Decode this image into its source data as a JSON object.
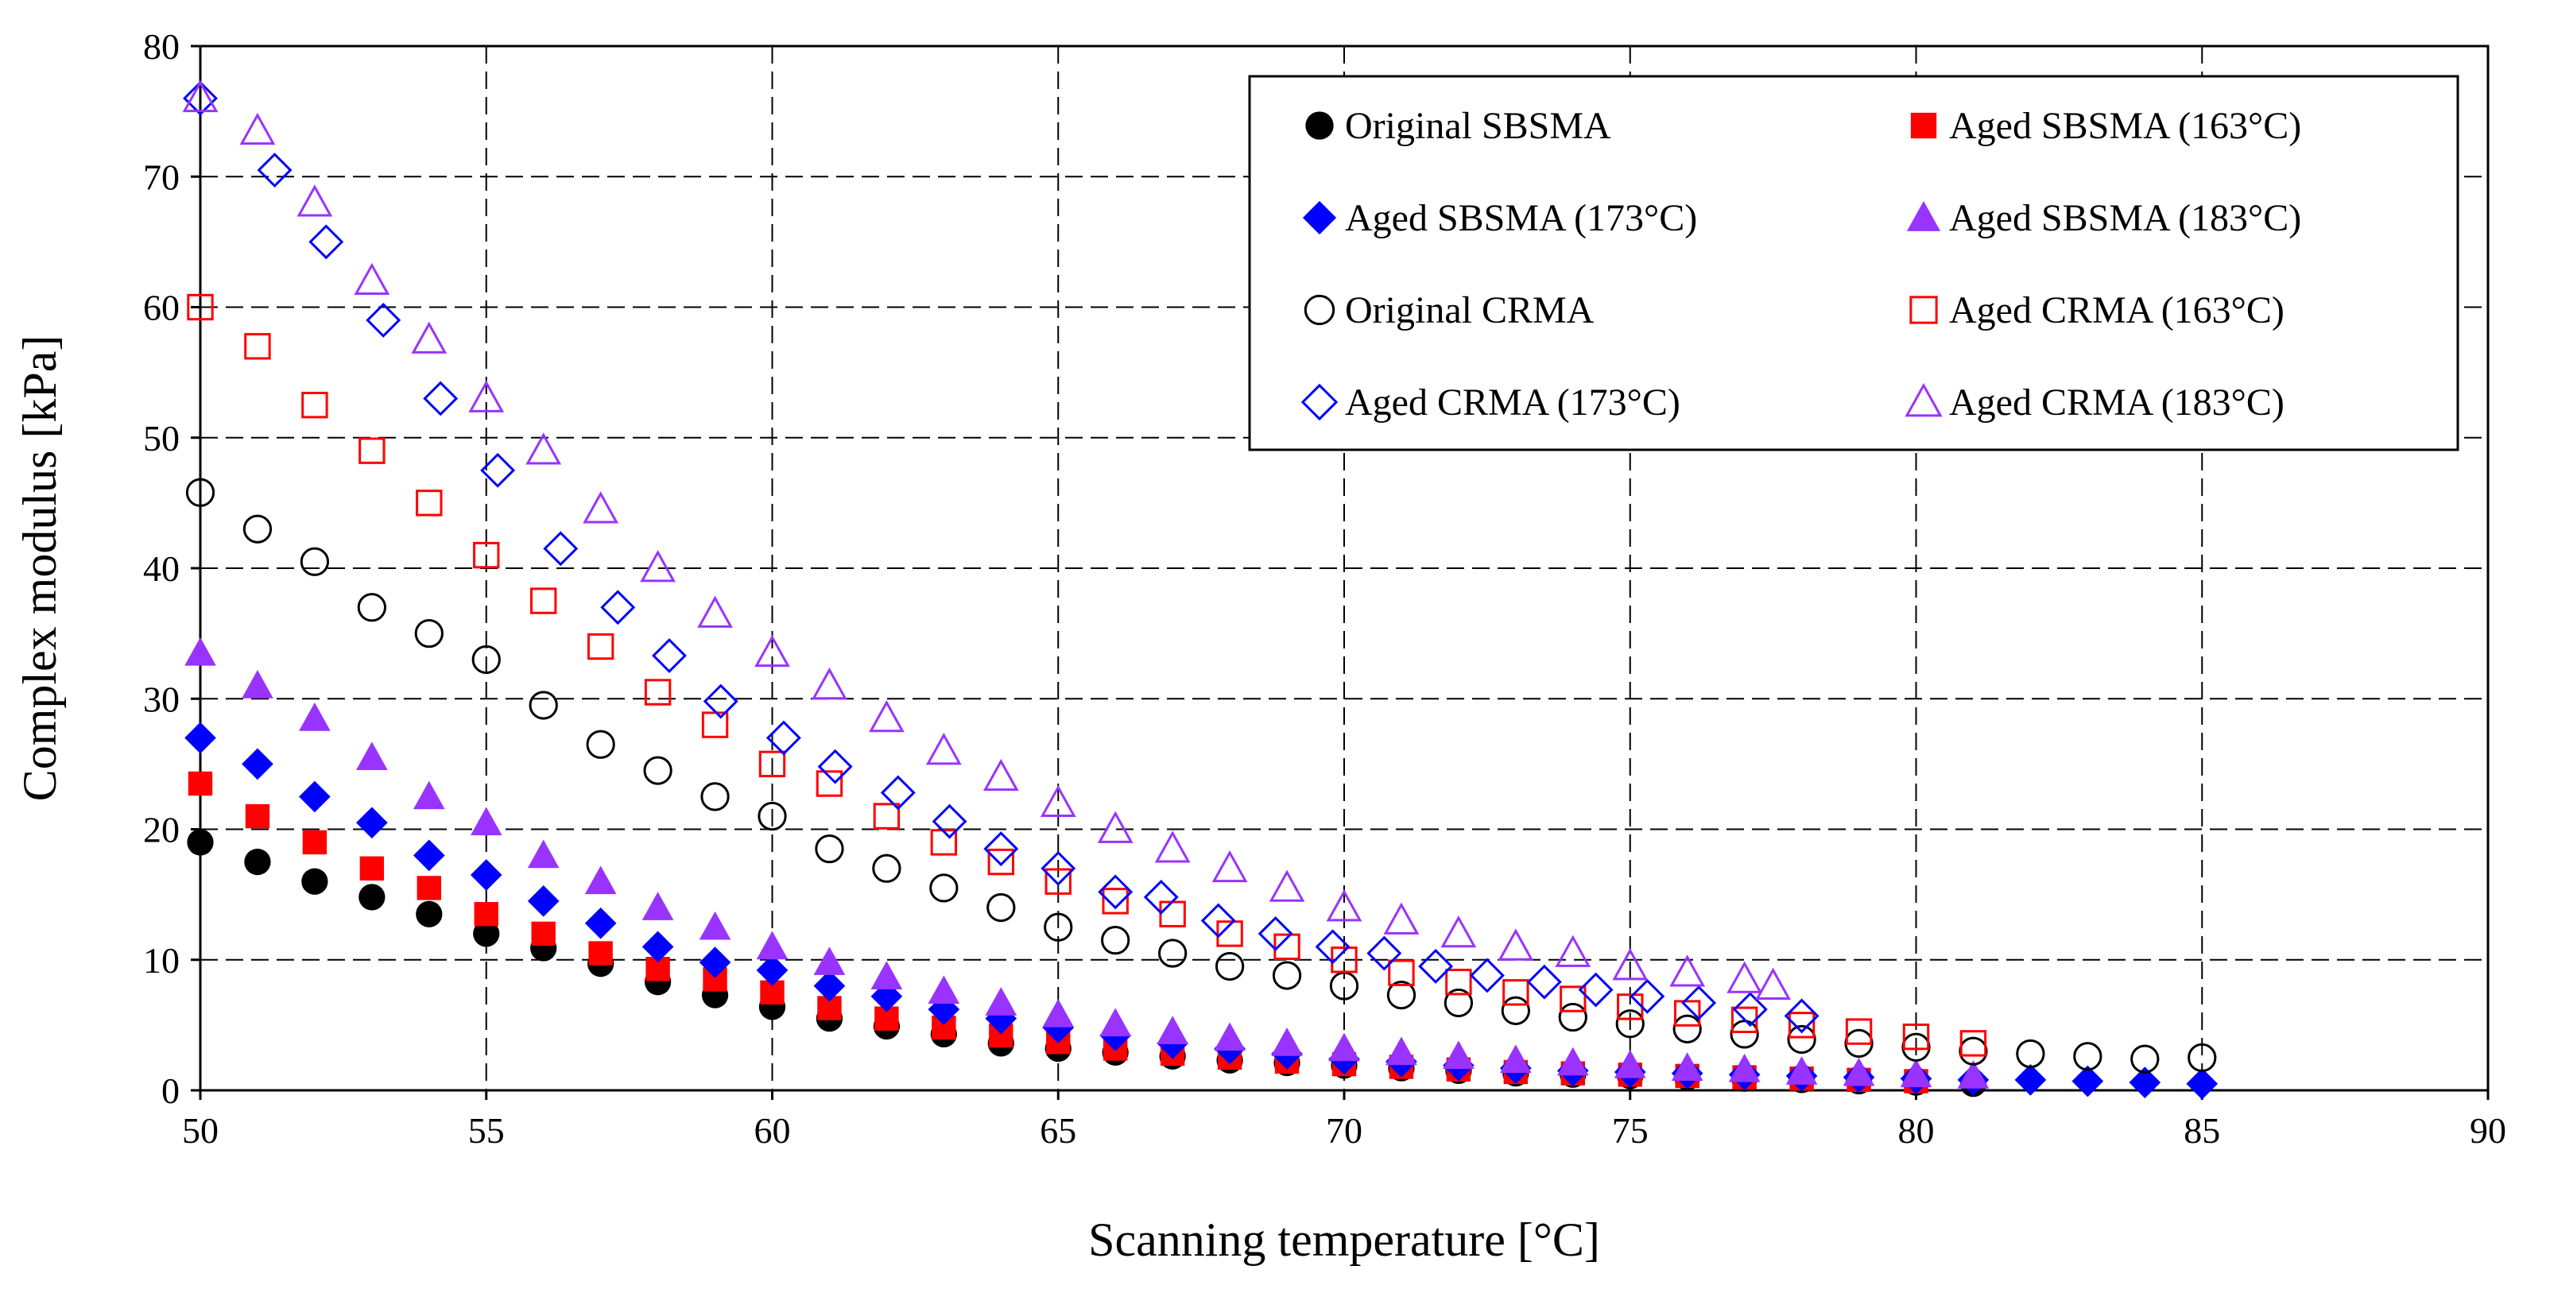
{
  "chart_data": {
    "type": "scatter",
    "title": "",
    "xlabel": "Scanning temperature [°C]",
    "ylabel": "Complex modulus [kPa]",
    "xlim": [
      50,
      90
    ],
    "ylim": [
      0,
      80
    ],
    "xticks": [
      50,
      55,
      60,
      65,
      70,
      75,
      80,
      85,
      90
    ],
    "yticks": [
      0,
      10,
      20,
      30,
      40,
      50,
      60,
      70,
      80
    ],
    "grid": true,
    "legend_position": "top-right",
    "series": [
      {
        "name": "Original SBSMA",
        "marker": "circle",
        "filled": true,
        "color": "#000000",
        "x": [
          50,
          51,
          52,
          53,
          54,
          55,
          56,
          57,
          58,
          59,
          60,
          61,
          62,
          63,
          64,
          65,
          66,
          67,
          68,
          69,
          70,
          71,
          72,
          73,
          74,
          75,
          76,
          77,
          78,
          79,
          80,
          81
        ],
        "y": [
          19,
          17.5,
          16,
          14.8,
          13.5,
          12,
          10.9,
          9.7,
          8.3,
          7.3,
          6.4,
          5.5,
          4.9,
          4.3,
          3.6,
          3.2,
          2.9,
          2.6,
          2.3,
          2.1,
          1.9,
          1.7,
          1.5,
          1.3,
          1.2,
          1.1,
          1.0,
          0.9,
          0.8,
          0.7,
          0.6,
          0.5
        ]
      },
      {
        "name": "Aged SBSMA (163°C)",
        "marker": "square",
        "filled": true,
        "color": "#ff0000",
        "x": [
          50,
          51,
          52,
          53,
          54,
          55,
          56,
          57,
          58,
          59,
          60,
          61,
          62,
          63,
          64,
          65,
          66,
          67,
          68,
          69,
          70,
          71,
          72,
          73,
          74,
          75,
          76,
          77,
          78,
          79,
          80
        ],
        "y": [
          23.5,
          21,
          19,
          17,
          15.5,
          13.5,
          12,
          10.5,
          9.3,
          8.5,
          7.5,
          6.3,
          5.5,
          4.8,
          4.2,
          3.7,
          3.2,
          2.8,
          2.5,
          2.2,
          2.0,
          1.8,
          1.6,
          1.4,
          1.3,
          1.2,
          1.1,
          1.0,
          0.9,
          0.8,
          0.7
        ]
      },
      {
        "name": "Aged SBSMA (173°C)",
        "marker": "diamond",
        "filled": true,
        "color": "#0000ff",
        "x": [
          50,
          51,
          52,
          53,
          54,
          55,
          56,
          57,
          58,
          59,
          60,
          61,
          62,
          63,
          64,
          65,
          66,
          67,
          68,
          69,
          70,
          71,
          72,
          73,
          74,
          75,
          76,
          77,
          78,
          79,
          80,
          81,
          82,
          83,
          84,
          85
        ],
        "y": [
          27,
          25,
          22.5,
          20.5,
          18,
          16.5,
          14.5,
          12.8,
          11,
          9.8,
          9.2,
          8,
          7.2,
          6.2,
          5.5,
          4.8,
          4.2,
          3.6,
          3.2,
          2.8,
          2.4,
          2.2,
          1.9,
          1.7,
          1.5,
          1.4,
          1.3,
          1.2,
          1.1,
          1.0,
          0.9,
          0.8,
          0.8,
          0.7,
          0.6,
          0.5
        ]
      },
      {
        "name": "Aged SBSMA (183°C)",
        "marker": "triangle",
        "filled": true,
        "color": "#9933ff",
        "x": [
          50,
          51,
          52,
          53,
          54,
          55,
          56,
          57,
          58,
          59,
          60,
          61,
          62,
          63,
          64,
          65,
          66,
          67,
          68,
          69,
          70,
          71,
          72,
          73,
          74,
          75,
          76,
          77,
          78,
          79,
          80,
          81
        ],
        "y": [
          33.5,
          31,
          28.5,
          25.5,
          22.5,
          20.5,
          18,
          16,
          14,
          12.5,
          11,
          9.8,
          8.7,
          7.6,
          6.7,
          5.8,
          5.1,
          4.5,
          4.0,
          3.6,
          3.2,
          2.9,
          2.6,
          2.3,
          2.1,
          1.9,
          1.7,
          1.6,
          1.4,
          1.3,
          1.2,
          1.1
        ]
      },
      {
        "name": "Original CRMA",
        "marker": "circle",
        "filled": false,
        "color": "#000000",
        "x": [
          50,
          51,
          52,
          53,
          54,
          55,
          56,
          57,
          58,
          59,
          60,
          61,
          62,
          63,
          64,
          65,
          66,
          67,
          68,
          69,
          70,
          71,
          72,
          73,
          74,
          75,
          76,
          77,
          78,
          79,
          80,
          81,
          82,
          83,
          84,
          85
        ],
        "y": [
          45.8,
          43,
          40.5,
          37,
          35,
          33,
          29.5,
          26.5,
          24.5,
          22.5,
          21,
          18.5,
          17,
          15.5,
          14,
          12.5,
          11.5,
          10.5,
          9.5,
          8.8,
          8.0,
          7.3,
          6.7,
          6.1,
          5.6,
          5.1,
          4.7,
          4.3,
          3.9,
          3.6,
          3.3,
          3.0,
          2.8,
          2.6,
          2.4,
          2.5
        ]
      },
      {
        "name": "Aged CRMA (163°C)",
        "marker": "square",
        "filled": false,
        "color": "#ff0000",
        "x": [
          50,
          51,
          52,
          53,
          54,
          55,
          56,
          57,
          58,
          59,
          60,
          61,
          62,
          63,
          64,
          65,
          66,
          67,
          68,
          69,
          70,
          71,
          72,
          73,
          74,
          75,
          76,
          77,
          78,
          79,
          80,
          81
        ],
        "y": [
          60,
          57,
          52.5,
          49,
          45,
          41,
          37.5,
          34,
          30.5,
          28,
          25,
          23.5,
          21,
          19,
          17.5,
          16,
          14.5,
          13.5,
          12,
          11,
          10,
          9,
          8.3,
          7.5,
          7,
          6.4,
          5.9,
          5.4,
          5,
          4.5,
          4.1,
          3.6
        ]
      },
      {
        "name": "Aged CRMA (173°C)",
        "marker": "diamond",
        "filled": false,
        "color": "#0000ff",
        "x": [
          50,
          51.3,
          52.2,
          53.2,
          54.2,
          55.2,
          56.3,
          57.3,
          58.2,
          59.1,
          60.2,
          61.1,
          62.2,
          63.1,
          64,
          65,
          66,
          66.8,
          67.8,
          68.8,
          69.8,
          70.7,
          71.6,
          72.5,
          73.5,
          74.4,
          75.3,
          76.2,
          77.1,
          78
        ],
        "y": [
          76,
          70.5,
          65,
          59,
          53,
          47.5,
          41.5,
          37,
          33.3,
          29.8,
          27,
          24.8,
          22.8,
          20.6,
          18.5,
          17,
          15.2,
          14.8,
          13,
          12,
          11,
          10.5,
          9.5,
          8.8,
          8.3,
          7.7,
          7.2,
          6.7,
          6.2,
          5.7
        ]
      },
      {
        "name": "Aged CRMA (183°C)",
        "marker": "triangle",
        "filled": false,
        "color": "#9933ff",
        "x": [
          50,
          51,
          52,
          53,
          54,
          55,
          56,
          57,
          58,
          59,
          60,
          61,
          62,
          63,
          64,
          65,
          66,
          67,
          68,
          69,
          70,
          71,
          72,
          73,
          74,
          75,
          76,
          77,
          77.5
        ],
        "y": [
          76,
          73.5,
          68,
          62,
          57.5,
          53,
          49,
          44.5,
          40,
          36.5,
          33.5,
          31,
          28.5,
          26,
          24,
          22,
          20,
          18.5,
          17,
          15.5,
          14,
          13,
          12,
          11,
          10.5,
          9.5,
          9,
          8.5,
          8
        ]
      }
    ]
  }
}
